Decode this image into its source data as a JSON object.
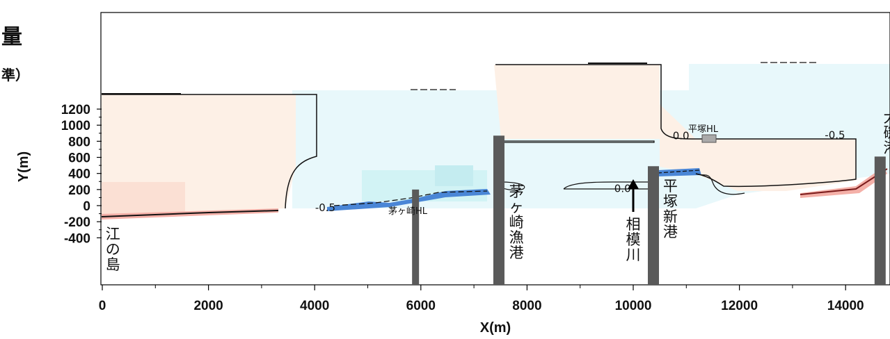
{
  "title_fragments": [
    "量",
    "準）"
  ],
  "chart_data": {
    "type": "heatmap",
    "xlabel": "X(m)",
    "ylabel": "Y(m)",
    "xlim": [
      0,
      14800
    ],
    "ylim": [
      -480,
      1200
    ],
    "x_ticks": [
      "0",
      "2000",
      "4000",
      "6000",
      "8000",
      "10000",
      "12000",
      "14000"
    ],
    "y_ticks": [
      "1200",
      "1000",
      "800",
      "600",
      "400",
      "200",
      "0",
      "-200",
      "-400"
    ],
    "grid": false,
    "contour_labels": [
      {
        "text": "0.0",
        "x": 10900,
        "y": 870
      },
      {
        "text": "-0.5",
        "x": 13800,
        "y": 875
      },
      {
        "text": "0.0",
        "x": 9800,
        "y": 210
      },
      {
        "text": "-0.5",
        "x": 4200,
        "y": -25
      }
    ],
    "structures": [
      {
        "name": "茅ヶ崎HL",
        "x": 5900,
        "y_top": 200
      },
      {
        "name": "茅ヶ崎漁港",
        "x": 7470,
        "y_top": 870
      },
      {
        "name": "平塚新港",
        "x": 10380,
        "y_top": 490
      },
      {
        "name": "大磯港",
        "x": 14650,
        "y_top": 610
      },
      {
        "name": "平塚HL",
        "x": 11400,
        "y_top": 420
      }
    ],
    "place_labels": [
      {
        "text": "江の島",
        "x": 200
      },
      {
        "text": "茅ヶ崎漁港",
        "x": 7800
      },
      {
        "text": "相模川",
        "x": 10000
      },
      {
        "text": "平塚新港",
        "x": 10700
      },
      {
        "text": "大磯港",
        "x": 14850
      }
    ],
    "colors": {
      "positive_light": "#fdf0e6",
      "positive_mid": "#fbe0d4",
      "negative_light": "#e8f8fb",
      "negative_mid": "#d2f3f5",
      "negative_strong": "#4a86d6",
      "structure": "#5a5a5a"
    }
  }
}
